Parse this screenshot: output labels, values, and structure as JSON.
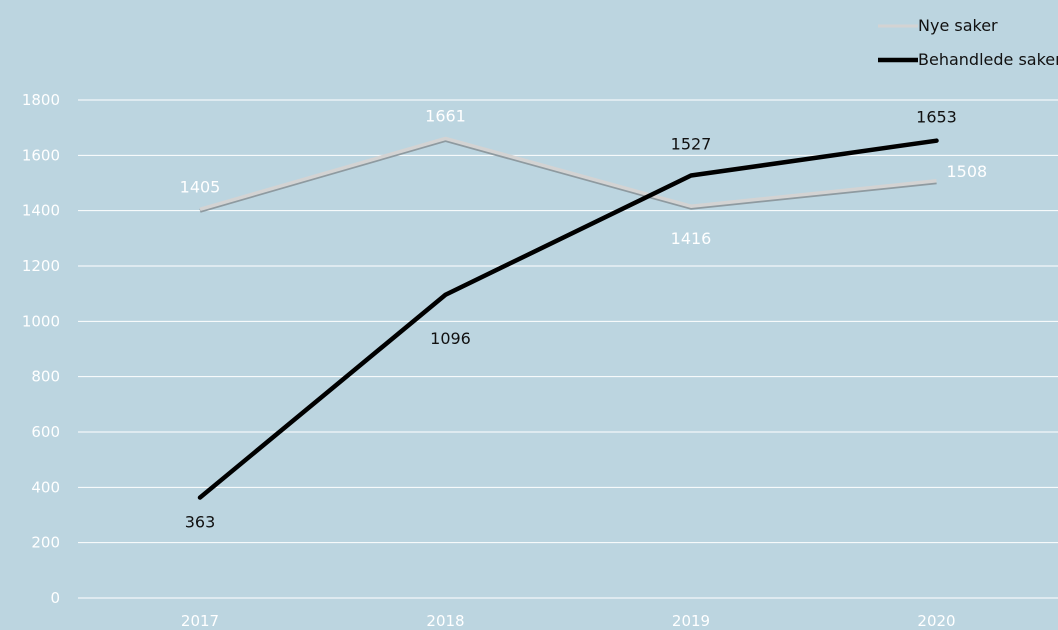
{
  "chart_data": {
    "type": "line",
    "categories": [
      "2017",
      "2018",
      "2019",
      "2020"
    ],
    "series": [
      {
        "name": "Nye saker",
        "values": [
          1405,
          1661,
          1416,
          1508
        ],
        "color": "#d3d3d3"
      },
      {
        "name": "Behandlede saker",
        "values": [
          363,
          1096,
          1527,
          1653
        ],
        "color": "#000000"
      }
    ],
    "ylim": [
      0,
      1800
    ],
    "yticks": [
      0,
      200,
      400,
      600,
      800,
      1000,
      1200,
      1400,
      1600,
      1800
    ],
    "grid": true,
    "legend_position": "top-right",
    "background": "#bcd5e0",
    "gridline_color": "#ffffff"
  }
}
